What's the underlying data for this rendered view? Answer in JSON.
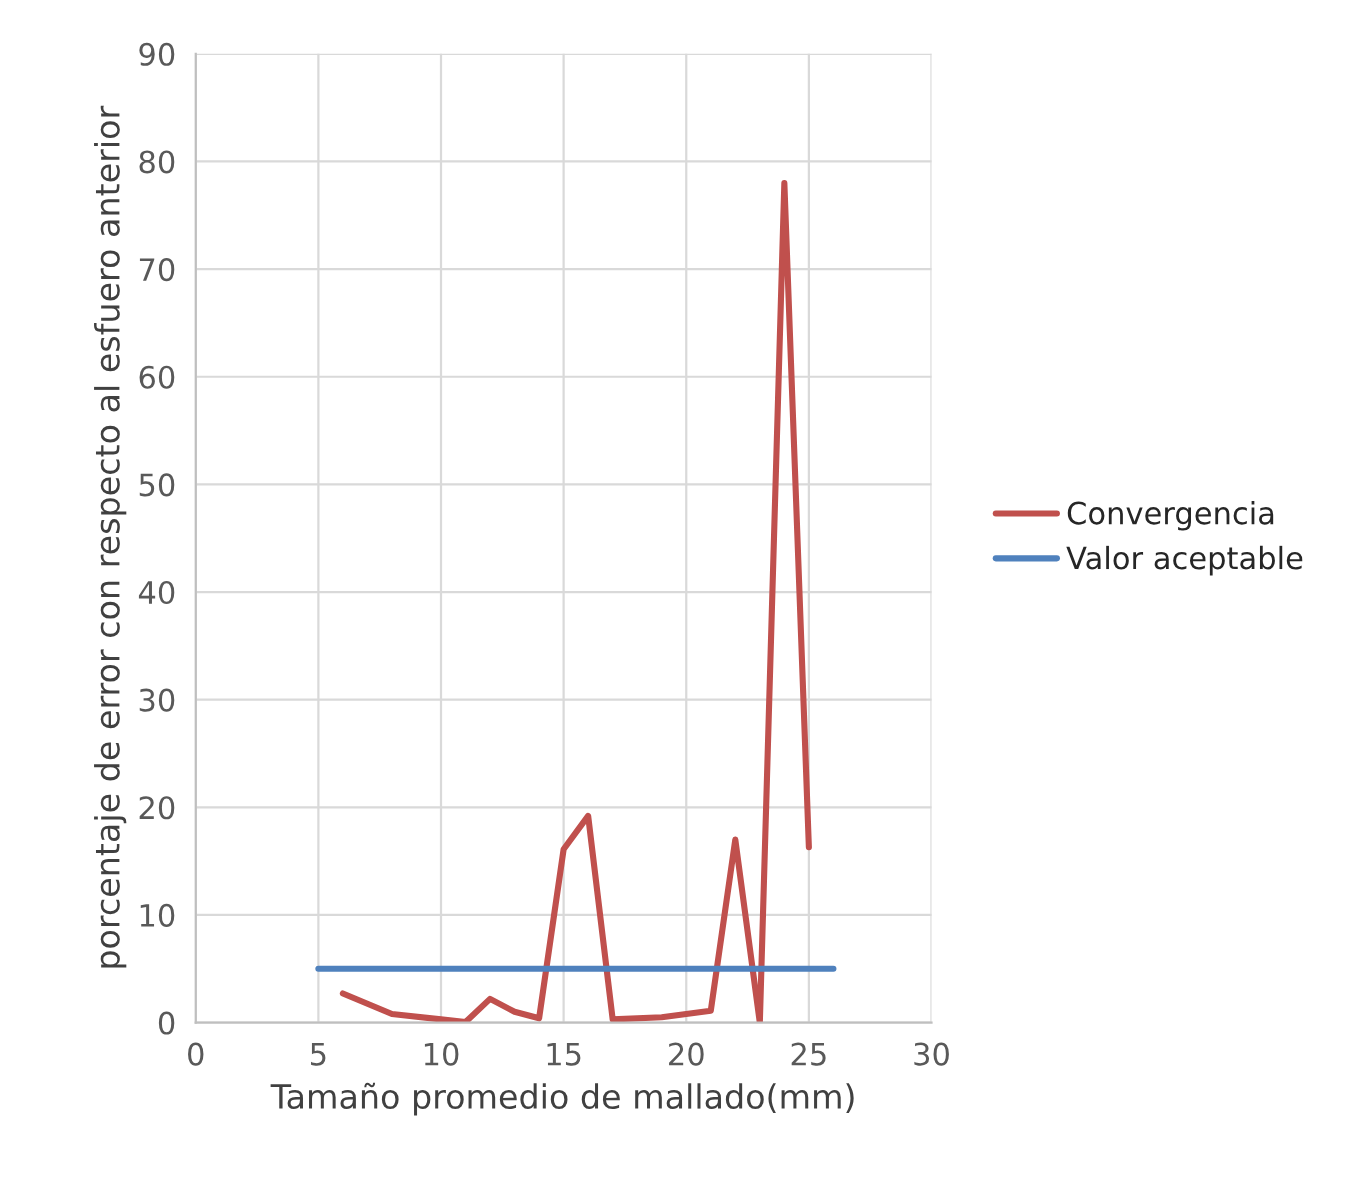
{
  "chart_data": {
    "type": "line",
    "xlabel": "Tamaño promedio de mallado(mm)",
    "ylabel": "porcentaje de error con respecto al esfuero anterior",
    "series": [
      {
        "name": "Convergencia",
        "color": "#c0504d",
        "x": [
          6,
          8,
          10,
          11,
          12,
          13,
          14,
          15,
          16,
          17,
          19,
          21,
          22,
          23,
          24,
          25
        ],
        "values": [
          2.7,
          0.8,
          0.3,
          0.05,
          2.2,
          1.0,
          0.4,
          16.1,
          19.2,
          0.3,
          0.5,
          1.1,
          17,
          0,
          78,
          16.3
        ]
      },
      {
        "name": "Valor aceptable",
        "color": "#4f81bd",
        "x": [
          5,
          26
        ],
        "values": [
          5,
          5
        ]
      }
    ],
    "xlim": [
      0,
      30
    ],
    "xticks": [
      0,
      5,
      10,
      15,
      20,
      25,
      30
    ],
    "ylim": [
      0,
      90
    ],
    "yticks": [
      0,
      10,
      20,
      30,
      40,
      50,
      60,
      70,
      80,
      90
    ],
    "grid": true,
    "legend": "right",
    "marker": "none",
    "line_style": "solid"
  }
}
